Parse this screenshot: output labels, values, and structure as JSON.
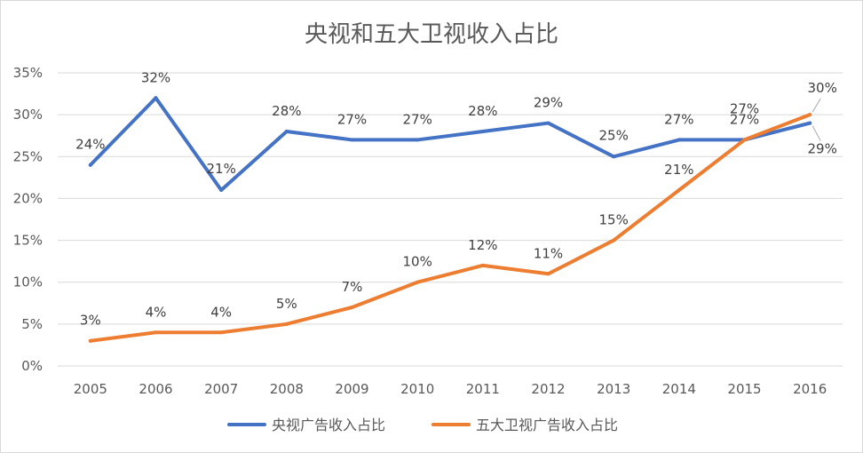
{
  "chart_data": {
    "type": "line",
    "title": "央视和五大卫视收入占比",
    "x": [
      "2005",
      "2006",
      "2007",
      "2008",
      "2009",
      "2010",
      "2011",
      "2012",
      "2013",
      "2014",
      "2015",
      "2016"
    ],
    "ylim": [
      0,
      35
    ],
    "yticks": [
      "0%",
      "5%",
      "10%",
      "15%",
      "20%",
      "25%",
      "30%",
      "35%"
    ],
    "grid": true,
    "legend_position": "bottom",
    "series": [
      {
        "name": "央视广告收入占比",
        "color": "#4472C4",
        "values": [
          24,
          32,
          21,
          28,
          27,
          27,
          28,
          29,
          25,
          27,
          27,
          29
        ],
        "labels": [
          "24%",
          "32%",
          "21%",
          "28%",
          "27%",
          "27%",
          "28%",
          "29%",
          "25%",
          "27%",
          "27%",
          "29%"
        ]
      },
      {
        "name": "五大卫视广告收入占比",
        "color": "#ED7D31",
        "values": [
          3,
          4,
          4,
          5,
          7,
          10,
          12,
          11,
          15,
          21,
          27,
          30
        ],
        "labels": [
          "3%",
          "4%",
          "4%",
          "5%",
          "7%",
          "10%",
          "12%",
          "11%",
          "15%",
          "21%",
          "27%",
          "30%"
        ]
      }
    ]
  }
}
